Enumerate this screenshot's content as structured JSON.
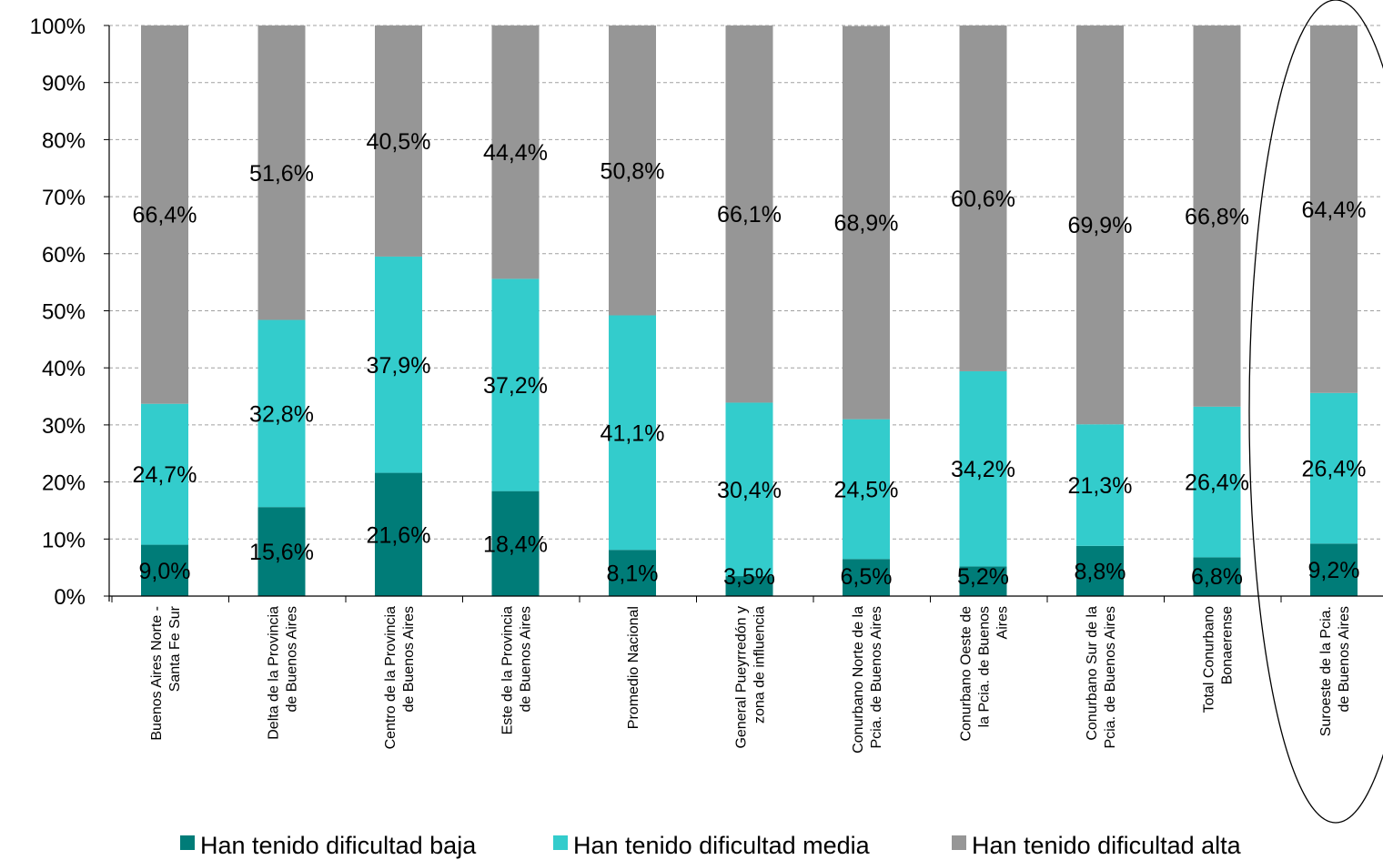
{
  "chart_data": {
    "type": "bar",
    "stacked": true,
    "percent_stacked": true,
    "ylim": [
      0,
      100
    ],
    "yticks": [
      "0%",
      "10%",
      "20%",
      "30%",
      "40%",
      "50%",
      "60%",
      "70%",
      "80%",
      "90%",
      "100%"
    ],
    "grid": true,
    "legend_position": "bottom",
    "categories": [
      [
        "Buenos Aires Norte -",
        "Santa Fe Sur"
      ],
      [
        "Delta de la Provincia",
        "de Buenos Aires"
      ],
      [
        "Centro de la Provincia",
        "de Buenos Aires"
      ],
      [
        "Este de la Provincia",
        "de Buenos Aires"
      ],
      [
        "Promedio Nacional"
      ],
      [
        "General Pueyrredón y",
        "zona de influencia"
      ],
      [
        "Conurbano Norte de la",
        "Pcia. de Buenos Aires"
      ],
      [
        "Conurbano Oeste de",
        "la Pcia. de Buenos",
        "Aires"
      ],
      [
        "Conurbano Sur de la",
        "Pcia. de Buenos Aires"
      ],
      [
        "Total Conurbano",
        "Bonaerense"
      ],
      [
        "Suroeste de la Pcia.",
        "de Buenos Aires"
      ]
    ],
    "series": [
      {
        "name": "Han tenido dificultad baja",
        "color": "#007C78",
        "values": [
          9.0,
          15.6,
          21.6,
          18.4,
          8.1,
          3.5,
          6.5,
          5.2,
          8.8,
          6.8,
          9.2
        ],
        "labels": [
          "9,0%",
          "15,6%",
          "21,6%",
          "18,4%",
          "8,1%",
          "3,5%",
          "6,5%",
          "5,2%",
          "8,8%",
          "6,8%",
          "9,2%"
        ]
      },
      {
        "name": "Han tenido dificultad media",
        "color": "#33CCCC",
        "values": [
          24.7,
          32.8,
          37.9,
          37.2,
          41.1,
          30.4,
          24.5,
          34.2,
          21.3,
          26.4,
          26.4
        ],
        "labels": [
          "24,7%",
          "32,8%",
          "37,9%",
          "37,2%",
          "41,1%",
          "30,4%",
          "24,5%",
          "34,2%",
          "21,3%",
          "26,4%",
          "26,4%"
        ]
      },
      {
        "name": "Han tenido dificultad alta",
        "color": "#969696",
        "values": [
          66.4,
          51.6,
          40.5,
          44.4,
          50.8,
          66.1,
          68.9,
          60.6,
          69.9,
          66.8,
          64.4
        ],
        "labels": [
          "66,4%",
          "51,6%",
          "40,5%",
          "44,4%",
          "50,8%",
          "66,1%",
          "68,9%",
          "60,6%",
          "69,9%",
          "66,8%",
          "64,4%"
        ]
      }
    ],
    "highlight_category_index": 10
  }
}
